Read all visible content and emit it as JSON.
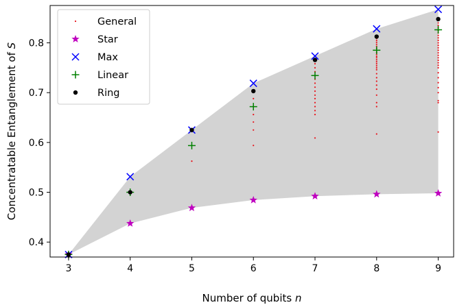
{
  "chart_data": {
    "type": "scatter",
    "title": "",
    "xlabel_prefix": "Number of qubits",
    "xlabel_var": "n",
    "ylabel_prefix": "Concentratable Entanglement of",
    "ylabel_var": "S",
    "xlim": [
      2.7,
      9.25
    ],
    "ylim": [
      0.37,
      0.875
    ],
    "xticks": [
      3,
      4,
      5,
      6,
      7,
      8,
      9
    ],
    "yticks": [
      0.4,
      0.5,
      0.6,
      0.7,
      0.8
    ],
    "ytick_labels": [
      "0.4",
      "0.5",
      "0.6",
      "0.7",
      "0.8"
    ],
    "grid": false,
    "legend_position": "upper-left",
    "shaded_region": {
      "color": "#d3d3d3",
      "x": [
        3,
        4,
        5,
        6,
        7,
        8,
        9
      ],
      "lower": [
        0.375,
        0.4375,
        0.46875,
        0.484375,
        0.4921875,
        0.49609375,
        0.498046875
      ],
      "upper": [
        0.375,
        0.53125,
        0.625,
        0.71875,
        0.7734375,
        0.828125,
        0.8671875
      ]
    },
    "series": [
      {
        "name": "General",
        "marker": "dot",
        "color": "#e8141c",
        "points": [
          [
            3,
            0.375
          ],
          [
            4,
            0.5
          ],
          [
            5,
            0.5625
          ],
          [
            5,
            0.625
          ],
          [
            6,
            0.594
          ],
          [
            6,
            0.625
          ],
          [
            6,
            0.641
          ],
          [
            6,
            0.656
          ],
          [
            6,
            0.672
          ],
          [
            6,
            0.688
          ],
          [
            6,
            0.703
          ],
          [
            7,
            0.609
          ],
          [
            7,
            0.656
          ],
          [
            7,
            0.664
          ],
          [
            7,
            0.672
          ],
          [
            7,
            0.68
          ],
          [
            7,
            0.688
          ],
          [
            7,
            0.695
          ],
          [
            7,
            0.703
          ],
          [
            7,
            0.711
          ],
          [
            7,
            0.719
          ],
          [
            7,
            0.727
          ],
          [
            7,
            0.734
          ],
          [
            7,
            0.742
          ],
          [
            7,
            0.75
          ],
          [
            7,
            0.758
          ],
          [
            7,
            0.766
          ],
          [
            8,
            0.617
          ],
          [
            8,
            0.672
          ],
          [
            8,
            0.68
          ],
          [
            8,
            0.695
          ],
          [
            8,
            0.707
          ],
          [
            8,
            0.715
          ],
          [
            8,
            0.723
          ],
          [
            8,
            0.73
          ],
          [
            8,
            0.738
          ],
          [
            8,
            0.746
          ],
          [
            8,
            0.75
          ],
          [
            8,
            0.754
          ],
          [
            8,
            0.758
          ],
          [
            8,
            0.762
          ],
          [
            8,
            0.766
          ],
          [
            8,
            0.77
          ],
          [
            8,
            0.773
          ],
          [
            8,
            0.777
          ],
          [
            8,
            0.781
          ],
          [
            8,
            0.785
          ],
          [
            8,
            0.789
          ],
          [
            8,
            0.793
          ],
          [
            8,
            0.797
          ],
          [
            8,
            0.801
          ],
          [
            8,
            0.805
          ],
          [
            8,
            0.809
          ],
          [
            8,
            0.813
          ],
          [
            9,
            0.621
          ],
          [
            9,
            0.68
          ],
          [
            9,
            0.684
          ],
          [
            9,
            0.7
          ],
          [
            9,
            0.71
          ],
          [
            9,
            0.72
          ],
          [
            9,
            0.73
          ],
          [
            9,
            0.74
          ],
          [
            9,
            0.75
          ],
          [
            9,
            0.755
          ],
          [
            9,
            0.76
          ],
          [
            9,
            0.765
          ],
          [
            9,
            0.77
          ],
          [
            9,
            0.775
          ],
          [
            9,
            0.78
          ],
          [
            9,
            0.785
          ],
          [
            9,
            0.79
          ],
          [
            9,
            0.795
          ],
          [
            9,
            0.8
          ],
          [
            9,
            0.805
          ],
          [
            9,
            0.81
          ],
          [
            9,
            0.815
          ],
          [
            9,
            0.82
          ],
          [
            9,
            0.825
          ],
          [
            9,
            0.83
          ],
          [
            9,
            0.835
          ],
          [
            9,
            0.84
          ],
          [
            9,
            0.845
          ],
          [
            9,
            0.85
          ]
        ]
      },
      {
        "name": "Star",
        "marker": "star",
        "color": "#bf00bf",
        "points": [
          [
            3,
            0.375
          ],
          [
            4,
            0.4375
          ],
          [
            5,
            0.46875
          ],
          [
            6,
            0.484375
          ],
          [
            7,
            0.4921875
          ],
          [
            8,
            0.49609375
          ],
          [
            9,
            0.498046875
          ]
        ]
      },
      {
        "name": "Max",
        "marker": "x",
        "color": "#0000ff",
        "points": [
          [
            3,
            0.375
          ],
          [
            4,
            0.53125
          ],
          [
            5,
            0.625
          ],
          [
            6,
            0.71875
          ],
          [
            7,
            0.7734375
          ],
          [
            8,
            0.828125
          ],
          [
            9,
            0.8671875
          ]
        ]
      },
      {
        "name": "Linear",
        "marker": "plus",
        "color": "#008000",
        "points": [
          [
            3,
            0.375
          ],
          [
            4,
            0.5
          ],
          [
            5,
            0.59375
          ],
          [
            6,
            0.671875
          ],
          [
            7,
            0.734375
          ],
          [
            8,
            0.78515625
          ],
          [
            9,
            0.826171875
          ]
        ]
      },
      {
        "name": "Ring",
        "marker": "circle",
        "color": "#000000",
        "points": [
          [
            3,
            0.375
          ],
          [
            4,
            0.5
          ],
          [
            5,
            0.625
          ],
          [
            6,
            0.703125
          ],
          [
            7,
            0.765625
          ],
          [
            8,
            0.8125
          ],
          [
            9,
            0.84765625
          ]
        ]
      }
    ]
  }
}
